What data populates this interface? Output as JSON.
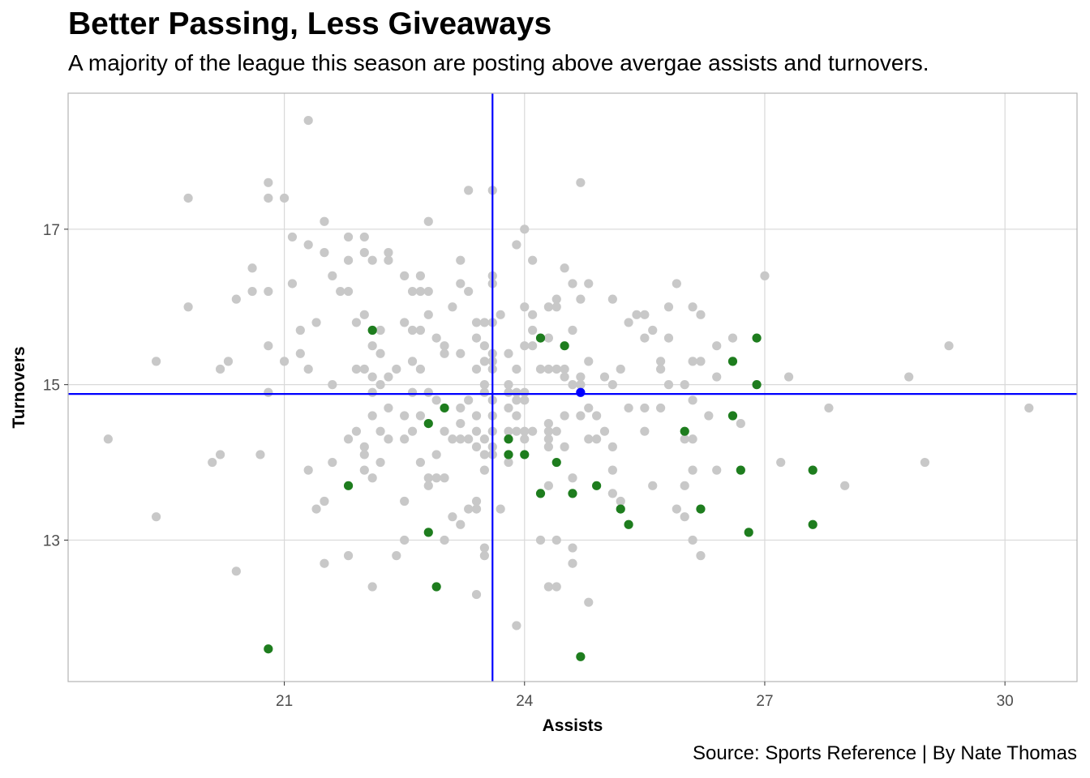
{
  "chart_data": {
    "type": "scatter",
    "title": "Better Passing, Less Giveaways",
    "subtitle": "A majority of the league this season are posting above avergae assists and turnovers.",
    "caption": "Source: Sports Reference | By Nate Thomas",
    "xlabel": "Assists",
    "ylabel": "Turnovers",
    "xlim": [
      18.3,
      30.9
    ],
    "ylim": [
      11.18,
      18.75
    ],
    "xticks": [
      21,
      24,
      27,
      30
    ],
    "yticks": [
      13,
      15,
      17
    ],
    "x_mean": 23.6,
    "y_mean": 14.88,
    "grid": true,
    "colors": {
      "grey": "#c8c8c8",
      "green": "#1e7d1e",
      "reference_line": "#0000ff",
      "panel_border": "#b3b3b3",
      "grid": "#d9d9d9"
    },
    "series": [
      {
        "color": "grey",
        "points": [
          [
            18.8,
            14.3
          ],
          [
            19.4,
            15.3
          ],
          [
            19.4,
            13.3
          ],
          [
            19.8,
            17.4
          ],
          [
            19.8,
            16.0
          ],
          [
            20.1,
            14.0
          ],
          [
            20.2,
            15.2
          ],
          [
            20.2,
            14.1
          ],
          [
            20.3,
            15.3
          ],
          [
            20.4,
            16.1
          ],
          [
            20.4,
            12.6
          ],
          [
            20.6,
            16.5
          ],
          [
            20.6,
            16.2
          ],
          [
            20.7,
            14.1
          ],
          [
            20.8,
            17.6
          ],
          [
            20.8,
            17.4
          ],
          [
            20.8,
            16.2
          ],
          [
            20.8,
            15.5
          ],
          [
            20.8,
            14.9
          ],
          [
            21.0,
            17.4
          ],
          [
            21.0,
            15.3
          ],
          [
            21.1,
            16.9
          ],
          [
            21.1,
            16.3
          ],
          [
            21.2,
            15.7
          ],
          [
            21.2,
            15.4
          ],
          [
            21.3,
            18.4
          ],
          [
            21.3,
            16.8
          ],
          [
            21.3,
            15.2
          ],
          [
            21.3,
            13.9
          ],
          [
            21.4,
            15.8
          ],
          [
            21.4,
            13.4
          ],
          [
            21.5,
            17.1
          ],
          [
            21.5,
            16.7
          ],
          [
            21.5,
            13.5
          ],
          [
            21.5,
            12.7
          ],
          [
            21.6,
            16.4
          ],
          [
            21.6,
            15.0
          ],
          [
            21.6,
            14.0
          ],
          [
            21.7,
            16.2
          ],
          [
            21.8,
            16.9
          ],
          [
            21.8,
            16.6
          ],
          [
            21.8,
            16.2
          ],
          [
            21.8,
            14.3
          ],
          [
            21.8,
            12.8
          ],
          [
            21.9,
            15.8
          ],
          [
            21.9,
            15.2
          ],
          [
            21.9,
            14.4
          ],
          [
            22.0,
            16.9
          ],
          [
            22.0,
            16.7
          ],
          [
            22.0,
            15.9
          ],
          [
            22.0,
            15.2
          ],
          [
            22.0,
            14.2
          ],
          [
            22.0,
            14.1
          ],
          [
            22.0,
            13.9
          ],
          [
            22.1,
            16.6
          ],
          [
            22.1,
            15.5
          ],
          [
            22.1,
            15.1
          ],
          [
            22.1,
            14.9
          ],
          [
            22.1,
            14.6
          ],
          [
            22.1,
            13.8
          ],
          [
            22.1,
            12.4
          ],
          [
            22.2,
            15.7
          ],
          [
            22.2,
            15.4
          ],
          [
            22.2,
            15.0
          ],
          [
            22.2,
            14.4
          ],
          [
            22.2,
            14.0
          ],
          [
            22.3,
            16.7
          ],
          [
            22.3,
            16.6
          ],
          [
            22.3,
            15.1
          ],
          [
            22.3,
            14.7
          ],
          [
            22.3,
            14.3
          ],
          [
            22.4,
            15.2
          ],
          [
            22.4,
            12.8
          ],
          [
            22.5,
            16.4
          ],
          [
            22.5,
            15.8
          ],
          [
            22.5,
            14.6
          ],
          [
            22.5,
            14.3
          ],
          [
            22.5,
            13.5
          ],
          [
            22.5,
            13.0
          ],
          [
            22.6,
            16.2
          ],
          [
            22.6,
            15.7
          ],
          [
            22.6,
            15.3
          ],
          [
            22.6,
            14.9
          ],
          [
            22.6,
            14.4
          ],
          [
            22.7,
            16.4
          ],
          [
            22.7,
            16.2
          ],
          [
            22.7,
            15.7
          ],
          [
            22.7,
            15.2
          ],
          [
            22.7,
            14.6
          ],
          [
            22.7,
            14.0
          ],
          [
            22.8,
            17.1
          ],
          [
            22.8,
            16.2
          ],
          [
            22.8,
            15.9
          ],
          [
            22.8,
            14.9
          ],
          [
            22.8,
            13.8
          ],
          [
            22.8,
            13.7
          ],
          [
            22.9,
            15.6
          ],
          [
            22.9,
            14.8
          ],
          [
            22.9,
            14.1
          ],
          [
            22.9,
            13.8
          ],
          [
            23.0,
            15.5
          ],
          [
            23.0,
            15.4
          ],
          [
            23.0,
            14.4
          ],
          [
            23.0,
            13.8
          ],
          [
            23.0,
            13.0
          ],
          [
            23.1,
            16.0
          ],
          [
            23.1,
            14.3
          ],
          [
            23.1,
            13.3
          ],
          [
            23.2,
            16.6
          ],
          [
            23.2,
            16.3
          ],
          [
            23.2,
            15.4
          ],
          [
            23.2,
            14.7
          ],
          [
            23.2,
            14.5
          ],
          [
            23.2,
            14.3
          ],
          [
            23.2,
            13.2
          ],
          [
            23.3,
            17.5
          ],
          [
            23.3,
            16.2
          ],
          [
            23.3,
            14.8
          ],
          [
            23.3,
            14.3
          ],
          [
            23.3,
            13.4
          ],
          [
            23.4,
            15.8
          ],
          [
            23.4,
            15.6
          ],
          [
            23.4,
            15.2
          ],
          [
            23.4,
            14.6
          ],
          [
            23.4,
            14.4
          ],
          [
            23.4,
            14.2
          ],
          [
            23.4,
            13.5
          ],
          [
            23.4,
            13.4
          ],
          [
            23.4,
            12.3
          ],
          [
            23.5,
            15.8
          ],
          [
            23.5,
            15.5
          ],
          [
            23.5,
            15.3
          ],
          [
            23.5,
            15.0
          ],
          [
            23.5,
            14.9
          ],
          [
            23.5,
            14.3
          ],
          [
            23.5,
            14.1
          ],
          [
            23.5,
            13.9
          ],
          [
            23.5,
            12.9
          ],
          [
            23.5,
            12.8
          ],
          [
            23.6,
            17.5
          ],
          [
            23.6,
            16.4
          ],
          [
            23.6,
            16.3
          ],
          [
            23.6,
            15.8
          ],
          [
            23.6,
            15.4
          ],
          [
            23.6,
            15.3
          ],
          [
            23.6,
            15.2
          ],
          [
            23.6,
            14.8
          ],
          [
            23.6,
            14.6
          ],
          [
            23.6,
            14.4
          ],
          [
            23.6,
            14.2
          ],
          [
            23.6,
            14.1
          ],
          [
            23.7,
            15.9
          ],
          [
            23.7,
            13.4
          ],
          [
            23.8,
            15.4
          ],
          [
            23.8,
            15.0
          ],
          [
            23.8,
            14.9
          ],
          [
            23.8,
            14.7
          ],
          [
            23.8,
            14.4
          ],
          [
            23.8,
            14.1
          ],
          [
            23.8,
            14.0
          ],
          [
            23.9,
            16.8
          ],
          [
            23.9,
            15.2
          ],
          [
            23.9,
            14.9
          ],
          [
            23.9,
            14.8
          ],
          [
            23.9,
            14.6
          ],
          [
            23.9,
            14.4
          ],
          [
            23.9,
            11.9
          ],
          [
            24.0,
            17.0
          ],
          [
            24.0,
            16.0
          ],
          [
            24.0,
            15.5
          ],
          [
            24.0,
            14.9
          ],
          [
            24.0,
            14.8
          ],
          [
            24.0,
            14.4
          ],
          [
            24.0,
            14.3
          ],
          [
            24.1,
            16.6
          ],
          [
            24.1,
            15.9
          ],
          [
            24.1,
            15.7
          ],
          [
            24.1,
            15.5
          ],
          [
            24.1,
            14.4
          ],
          [
            24.2,
            15.2
          ],
          [
            24.2,
            13.0
          ],
          [
            24.3,
            16.0
          ],
          [
            24.3,
            15.6
          ],
          [
            24.3,
            15.2
          ],
          [
            24.3,
            14.5
          ],
          [
            24.3,
            14.4
          ],
          [
            24.3,
            14.3
          ],
          [
            24.3,
            14.2
          ],
          [
            24.3,
            13.7
          ],
          [
            24.3,
            12.4
          ],
          [
            24.4,
            16.1
          ],
          [
            24.4,
            16.0
          ],
          [
            24.4,
            15.2
          ],
          [
            24.4,
            14.4
          ],
          [
            24.4,
            13.0
          ],
          [
            24.4,
            12.4
          ],
          [
            24.5,
            16.5
          ],
          [
            24.5,
            15.2
          ],
          [
            24.5,
            15.1
          ],
          [
            24.5,
            14.6
          ],
          [
            24.5,
            14.2
          ],
          [
            24.6,
            16.3
          ],
          [
            24.6,
            15.7
          ],
          [
            24.6,
            15.0
          ],
          [
            24.6,
            13.8
          ],
          [
            24.6,
            12.9
          ],
          [
            24.6,
            12.7
          ],
          [
            24.7,
            17.6
          ],
          [
            24.7,
            16.1
          ],
          [
            24.7,
            15.1
          ],
          [
            24.7,
            15.0
          ],
          [
            24.7,
            14.6
          ],
          [
            24.8,
            16.3
          ],
          [
            24.8,
            15.3
          ],
          [
            24.8,
            14.7
          ],
          [
            24.8,
            14.3
          ],
          [
            24.8,
            12.2
          ],
          [
            24.9,
            14.6
          ],
          [
            24.9,
            14.3
          ],
          [
            25.0,
            15.1
          ],
          [
            25.0,
            14.4
          ],
          [
            25.1,
            16.1
          ],
          [
            25.1,
            14.2
          ],
          [
            25.1,
            13.9
          ],
          [
            25.1,
            13.6
          ],
          [
            25.1,
            15.0
          ],
          [
            25.2,
            15.2
          ],
          [
            25.2,
            13.5
          ],
          [
            25.3,
            15.8
          ],
          [
            25.3,
            14.7
          ],
          [
            25.4,
            15.9
          ],
          [
            25.5,
            15.9
          ],
          [
            25.5,
            14.7
          ],
          [
            25.5,
            15.6
          ],
          [
            25.5,
            14.4
          ],
          [
            25.6,
            13.7
          ],
          [
            25.6,
            15.7
          ],
          [
            25.7,
            15.3
          ],
          [
            25.7,
            15.2
          ],
          [
            25.7,
            14.7
          ],
          [
            25.8,
            16.0
          ],
          [
            25.8,
            15.6
          ],
          [
            25.8,
            15.0
          ],
          [
            25.9,
            16.3
          ],
          [
            25.9,
            13.4
          ],
          [
            26.0,
            15.0
          ],
          [
            26.0,
            14.3
          ],
          [
            26.0,
            13.7
          ],
          [
            26.0,
            13.3
          ],
          [
            26.1,
            16.0
          ],
          [
            26.1,
            15.3
          ],
          [
            26.1,
            14.8
          ],
          [
            26.1,
            14.3
          ],
          [
            26.1,
            13.9
          ],
          [
            26.1,
            13.0
          ],
          [
            26.2,
            15.9
          ],
          [
            26.2,
            15.3
          ],
          [
            26.2,
            12.8
          ],
          [
            26.3,
            14.6
          ],
          [
            26.4,
            15.5
          ],
          [
            26.4,
            15.1
          ],
          [
            26.4,
            13.9
          ],
          [
            26.6,
            15.6
          ],
          [
            26.7,
            14.5
          ],
          [
            27.0,
            16.4
          ],
          [
            27.2,
            14.0
          ],
          [
            27.3,
            15.1
          ],
          [
            27.8,
            14.7
          ],
          [
            28.0,
            13.7
          ],
          [
            28.8,
            15.1
          ],
          [
            29.0,
            14.0
          ],
          [
            29.3,
            15.5
          ],
          [
            30.3,
            14.7
          ]
        ]
      },
      {
        "color": "green",
        "points": [
          [
            20.8,
            11.6
          ],
          [
            21.8,
            13.7
          ],
          [
            22.1,
            15.7
          ],
          [
            22.8,
            14.5
          ],
          [
            22.8,
            13.1
          ],
          [
            22.9,
            12.4
          ],
          [
            23.0,
            14.7
          ],
          [
            23.8,
            14.3
          ],
          [
            23.8,
            14.1
          ],
          [
            24.0,
            14.1
          ],
          [
            24.2,
            15.6
          ],
          [
            24.2,
            13.6
          ],
          [
            24.4,
            14.0
          ],
          [
            24.5,
            15.5
          ],
          [
            24.6,
            13.6
          ],
          [
            24.7,
            11.5
          ],
          [
            24.9,
            13.7
          ],
          [
            25.2,
            13.4
          ],
          [
            25.3,
            13.2
          ],
          [
            26.0,
            14.4
          ],
          [
            26.2,
            13.4
          ],
          [
            26.6,
            15.3
          ],
          [
            26.6,
            14.6
          ],
          [
            26.7,
            13.9
          ],
          [
            26.8,
            13.1
          ],
          [
            26.9,
            15.6
          ],
          [
            26.9,
            15.0
          ],
          [
            27.6,
            13.9
          ],
          [
            27.6,
            13.2
          ]
        ]
      },
      {
        "color": "reference_line",
        "points": [
          [
            24.7,
            14.9
          ]
        ]
      }
    ]
  }
}
